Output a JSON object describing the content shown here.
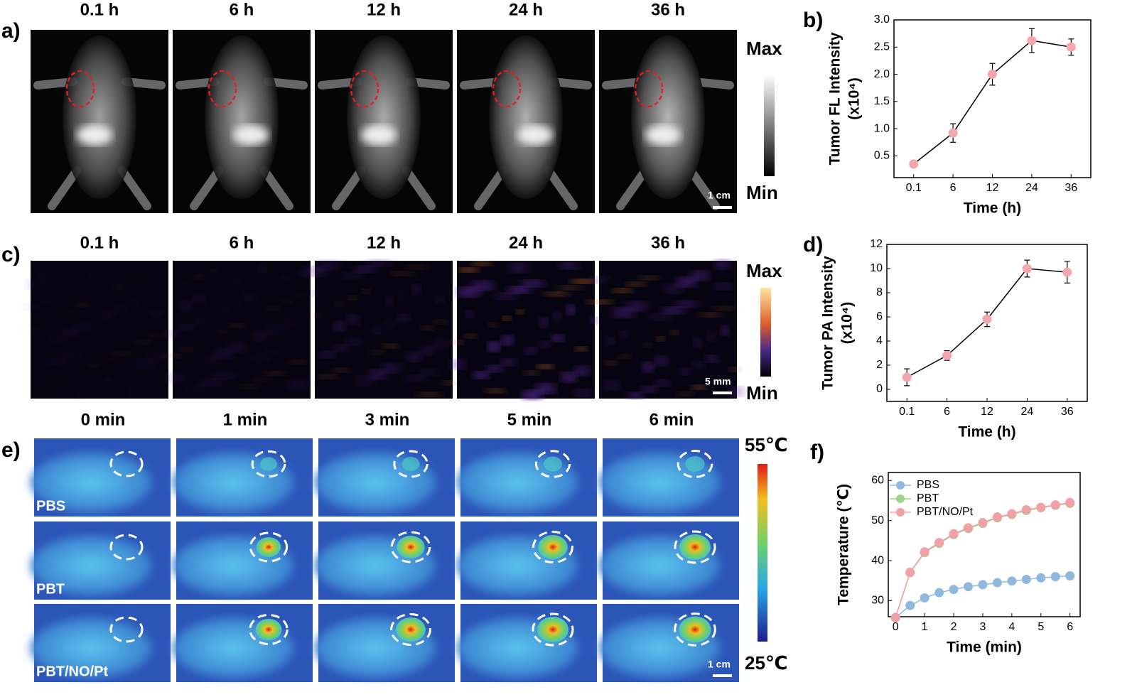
{
  "panels": {
    "a": {
      "label": "a)",
      "times": [
        "0.1 h",
        "6 h",
        "12 h",
        "24 h",
        "36 h"
      ],
      "colorbar": {
        "max": "Max",
        "min": "Min"
      },
      "scale_bar": "1 cm"
    },
    "c": {
      "label": "c)",
      "times": [
        "0.1 h",
        "6 h",
        "12 h",
        "24 h",
        "36 h"
      ],
      "colorbar": {
        "max": "Max",
        "min": "Min"
      },
      "scale_bar": "5 mm"
    },
    "e": {
      "label": "e)",
      "times": [
        "0 min",
        "1 min",
        "3 min",
        "5 min",
        "6 min"
      ],
      "rows": [
        "PBS",
        "PBT",
        "PBT/NO/Pt"
      ],
      "colorbar": {
        "max": "55℃",
        "min": "25℃"
      },
      "scale_bar": "1 cm"
    }
  },
  "chart_data": [
    {
      "type": "line",
      "panel_label": "b)",
      "categories": [
        "0.1",
        "6",
        "12",
        "24",
        "36"
      ],
      "values": [
        0.35,
        0.92,
        2.0,
        2.62,
        2.5
      ],
      "errors": [
        0.05,
        0.17,
        0.2,
        0.22,
        0.15
      ],
      "color": "#f4a6ad",
      "ylabel": "Tumor FL Intensity",
      "ylabel_unit": "(x10⁴)",
      "xlabel": "Time (h)",
      "ylim": [
        0.1,
        3.0
      ],
      "yticks": [
        0.5,
        {
          "value": 1.0,
          "label": "1.0"
        },
        1.5,
        {
          "value": 2.0,
          "label": "2.0"
        },
        2.5,
        {
          "value": 3.0,
          "label": "3.0"
        }
      ]
    },
    {
      "type": "line",
      "panel_label": "d)",
      "categories": [
        "0.1",
        "6",
        "12",
        "24",
        "36"
      ],
      "values": [
        1.0,
        2.8,
        5.8,
        10.0,
        9.7
      ],
      "errors": [
        0.7,
        0.4,
        0.6,
        0.7,
        0.9
      ],
      "color": "#f4a6ad",
      "ylabel": "Tumor PA Intensity",
      "ylabel_unit": "(x10⁴)",
      "xlabel": "Time (h)",
      "ylim": [
        -1,
        12
      ],
      "yticks": [
        0,
        2,
        4,
        6,
        8,
        10,
        12
      ]
    },
    {
      "type": "line",
      "panel_label": "f)",
      "x": [
        0,
        0.5,
        1,
        1.5,
        2,
        2.5,
        3,
        3.5,
        4,
        4.5,
        5,
        5.5,
        6
      ],
      "series": [
        {
          "name": "PBS",
          "color": "#8fb8de",
          "values": [
            25.8,
            28.8,
            30.7,
            32,
            32.8,
            33.5,
            34,
            34.5,
            34.9,
            35.3,
            35.7,
            36,
            36.2
          ],
          "errors": [
            0.5,
            0.5,
            0.5,
            0.5,
            0.5,
            0.5,
            0.5,
            0.5,
            0.5,
            0.5,
            0.5,
            0.5,
            0.5
          ]
        },
        {
          "name": "PBT",
          "color": "#9fd38a",
          "values": [
            25.8,
            37,
            42,
            44.3,
            46.5,
            48,
            49.3,
            50.7,
            51.5,
            52.5,
            53.2,
            53.8,
            54.3
          ],
          "errors": [
            0.5,
            0.5,
            0.5,
            0.5,
            0.5,
            0.5,
            0.5,
            0.5,
            0.5,
            0.5,
            0.5,
            0.5,
            0.5
          ]
        },
        {
          "name": "PBT/NO/Pt",
          "color": "#f2a0a8",
          "values": [
            25.8,
            37.1,
            42.2,
            44.5,
            46.7,
            48.2,
            49.5,
            50.9,
            51.7,
            52.7,
            53.3,
            53.9,
            54.5
          ],
          "errors": [
            0.5,
            0.5,
            0.5,
            0.5,
            0.5,
            0.5,
            0.5,
            0.5,
            0.5,
            0.5,
            0.5,
            0.5,
            0.5
          ]
        }
      ],
      "ylabel": "Temperature (℃)",
      "xlabel": "Time (min)",
      "legend": "upper left",
      "xlim": [
        -0.25,
        6.35
      ],
      "xticks": [
        0,
        1,
        2,
        3,
        4,
        5,
        6
      ],
      "ylim": [
        26,
        62
      ],
      "yticks": [
        30,
        40,
        50,
        60
      ]
    }
  ]
}
